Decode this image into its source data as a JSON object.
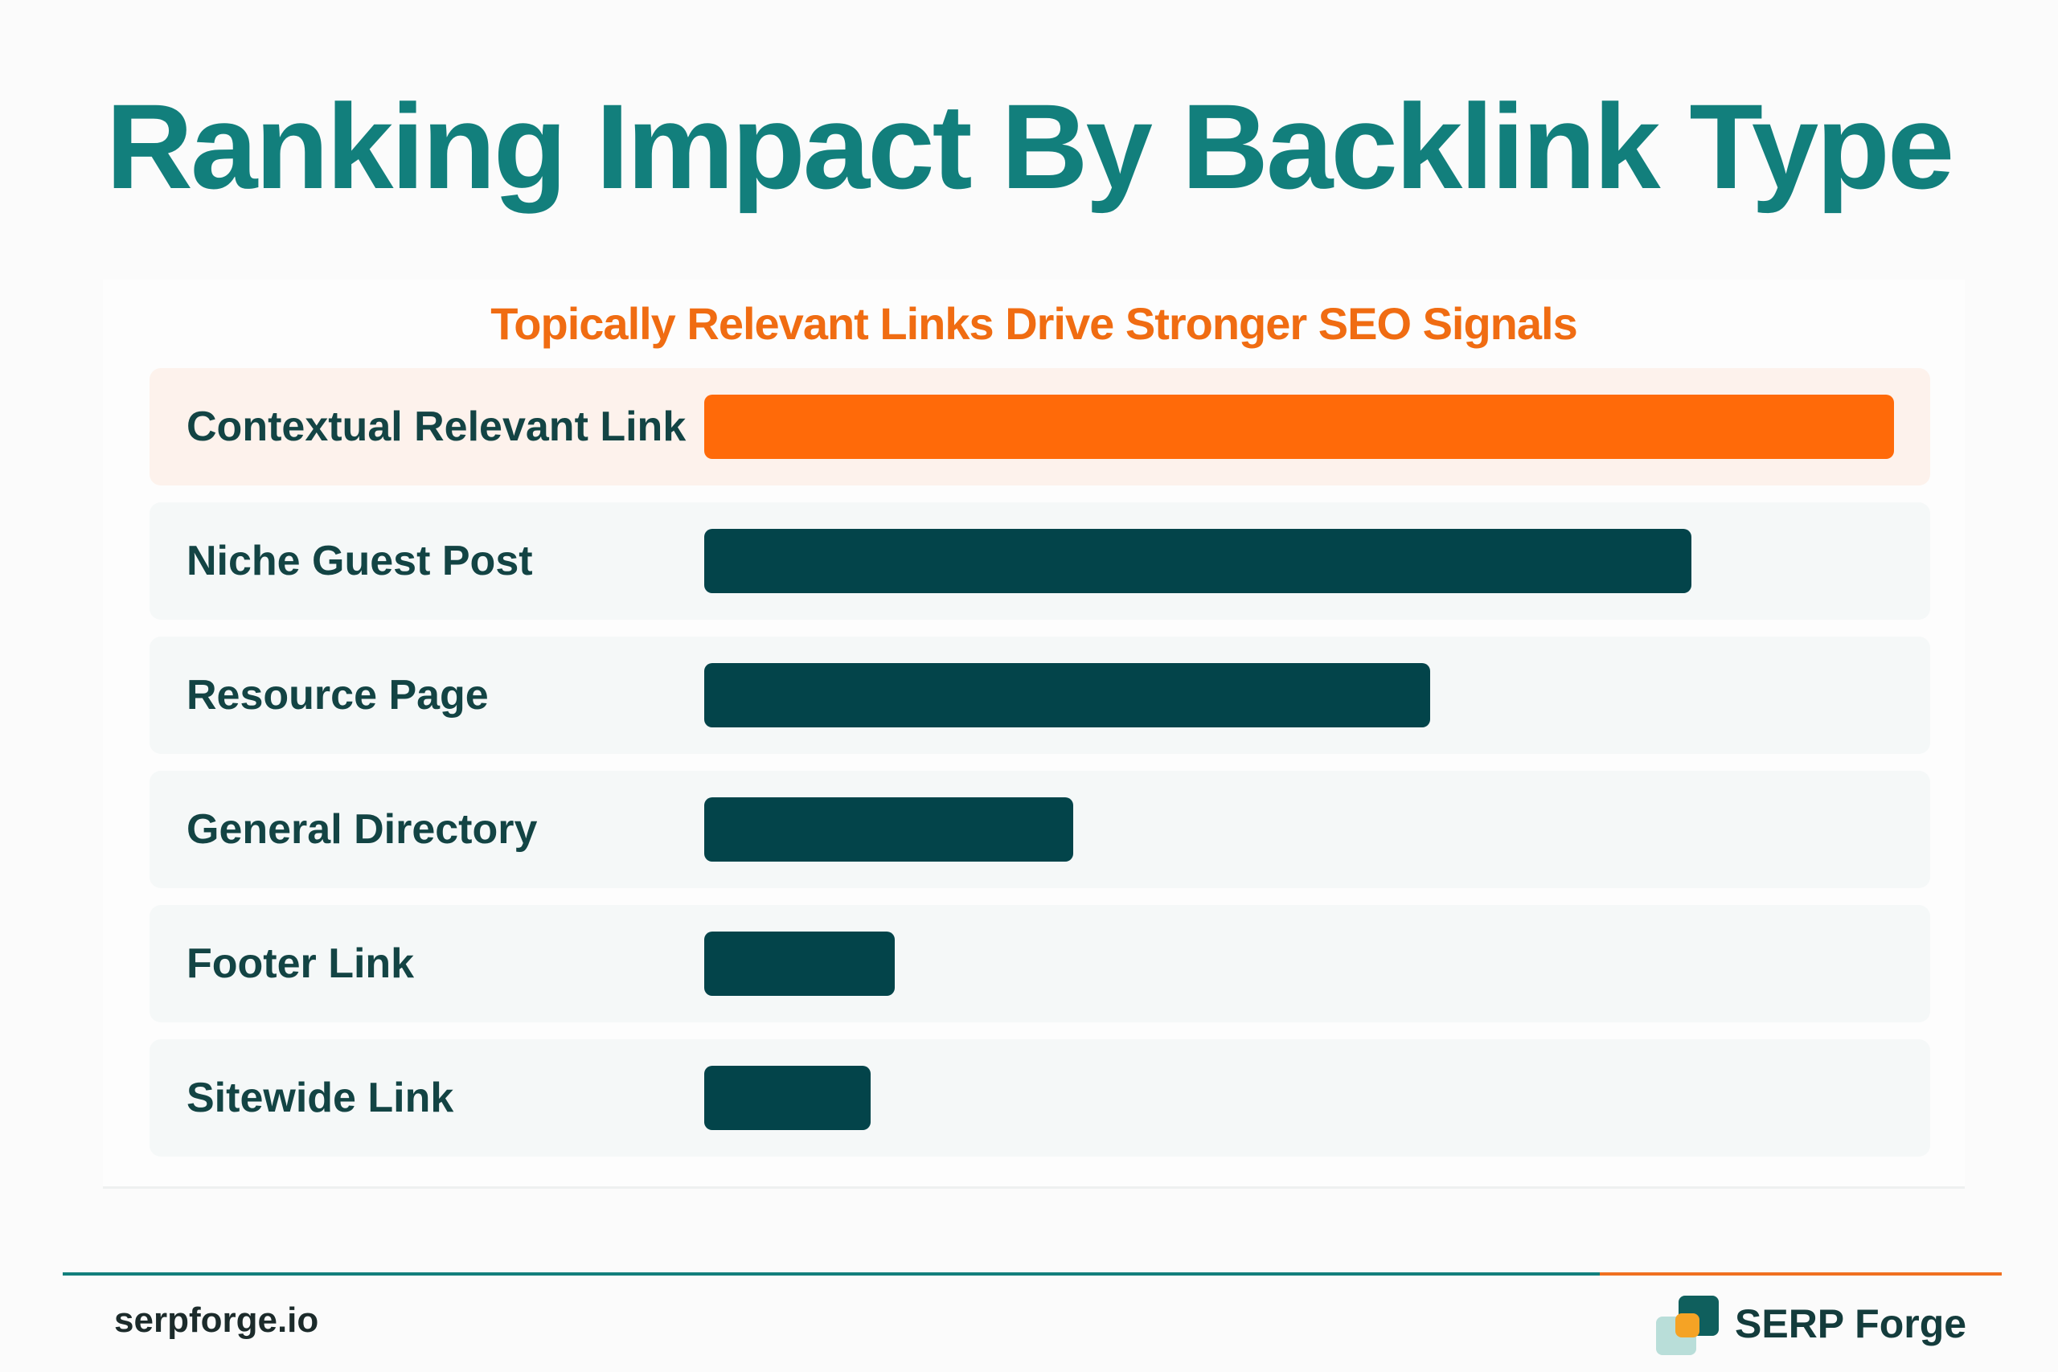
{
  "chart_data": {
    "type": "bar",
    "orientation": "horizontal",
    "title": "Ranking Impact By Backlink Type",
    "subtitle": "Topically Relevant Links Drive Stronger SEO Signals",
    "categories": [
      "Contextual Relevant Link",
      "Niche Guest Post",
      "Resource Page",
      "General Directory",
      "Footer Link",
      "Sitewide Link"
    ],
    "values": [
      100,
      83,
      61,
      31,
      16,
      14
    ],
    "highlight_index": 0,
    "colors": {
      "highlight": "#ff6a09",
      "default": "#03444a",
      "title": "#127f7c",
      "subtitle": "#f06c12"
    },
    "xlim": [
      0,
      100
    ],
    "grid": false
  },
  "footer": {
    "site": "serpforge.io",
    "brand": "SERP Forge",
    "brand_icon": "stacked-squares-logo-icon"
  }
}
